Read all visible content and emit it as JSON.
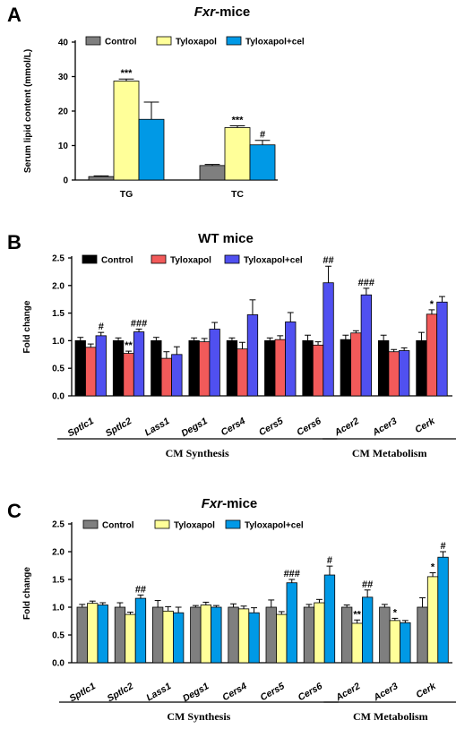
{
  "colors": {
    "control_gray": "#7f7f7f",
    "tyloxapol_yellow": "#ffff99",
    "cel_blue": "#0099e6",
    "control_black": "#000000",
    "tyloxapol_red": "#f25a5a",
    "cel_violet": "#5050f0"
  },
  "chart_data": [
    {
      "panel": "A",
      "title_italic": "Fxr",
      "title_rest": "-mice",
      "type": "bar",
      "ylabel": "Serum lipid content (mmol/L)",
      "ylim": [
        0,
        40
      ],
      "yticks": [
        "0",
        "10",
        "20",
        "30",
        "40"
      ],
      "legend": [
        "Control",
        "Tyloxapol",
        "Tyloxapol+cel"
      ],
      "categories": [
        "TG",
        "TC"
      ],
      "series": [
        {
          "name": "Control",
          "values": [
            1.0,
            4.2
          ],
          "errors": [
            0.2,
            0.3
          ],
          "color": "#7f7f7f"
        },
        {
          "name": "Tyloxapol",
          "values": [
            28.7,
            15.2
          ],
          "errors": [
            0.6,
            0.5
          ],
          "color": "#ffff99"
        },
        {
          "name": "Tyloxapol+cel",
          "values": [
            17.6,
            10.2
          ],
          "errors": [
            5.0,
            1.3
          ],
          "color": "#0099e6"
        }
      ],
      "annotations": [
        {
          "category": 0,
          "series": 1,
          "text": "***"
        },
        {
          "category": 1,
          "series": 1,
          "text": "***"
        },
        {
          "category": 1,
          "series": 2,
          "text": "#"
        }
      ],
      "groups": []
    },
    {
      "panel": "B",
      "title_italic": "",
      "title_rest": "WT mice",
      "type": "bar",
      "ylabel": "Fold change",
      "ylim": [
        0,
        2.5
      ],
      "yticks": [
        "0.0",
        "0.5",
        "1.0",
        "1.5",
        "2.0",
        "2.5"
      ],
      "legend": [
        "Control",
        "Tyloxapol",
        "Tyloxapol+cel"
      ],
      "categories": [
        "Sptlc1",
        "Sptlc2",
        "Lass1",
        "Degs1",
        "Cers4",
        "Cers5",
        "Cers6",
        "Acer2",
        "Acer3",
        "Cerk"
      ],
      "series": [
        {
          "name": "Control",
          "values": [
            1.0,
            1.0,
            1.0,
            1.0,
            1.0,
            1.0,
            1.0,
            1.02,
            1.0,
            1.0
          ],
          "errors": [
            0.06,
            0.05,
            0.06,
            0.05,
            0.05,
            0.05,
            0.1,
            0.08,
            0.1,
            0.15
          ],
          "color": "#000000"
        },
        {
          "name": "Tyloxapol",
          "values": [
            0.88,
            0.77,
            0.68,
            0.98,
            0.85,
            1.02,
            0.92,
            1.14,
            0.8,
            1.48
          ],
          "errors": [
            0.06,
            0.04,
            0.12,
            0.06,
            0.12,
            0.07,
            0.06,
            0.04,
            0.04,
            0.08
          ],
          "color": "#f25a5a"
        },
        {
          "name": "Tyloxapol+cel",
          "values": [
            1.09,
            1.16,
            0.75,
            1.21,
            1.47,
            1.34,
            2.05,
            1.83,
            0.82,
            1.7
          ],
          "errors": [
            0.06,
            0.05,
            0.14,
            0.12,
            0.27,
            0.17,
            0.3,
            0.12,
            0.05,
            0.1
          ],
          "color": "#5050f0"
        }
      ],
      "annotations": [
        {
          "category": 0,
          "series": 2,
          "text": "#"
        },
        {
          "category": 1,
          "series": 1,
          "text": "**"
        },
        {
          "category": 1,
          "series": 2,
          "text": "###"
        },
        {
          "category": 6,
          "series": 2,
          "text": "##"
        },
        {
          "category": 7,
          "series": 2,
          "text": "###"
        },
        {
          "category": 9,
          "series": 1,
          "text": "*"
        }
      ],
      "groups": [
        {
          "label": "CM Synthesis",
          "from": 0,
          "to": 6
        },
        {
          "label": "CM Metabolism",
          "from": 7,
          "to": 9
        }
      ]
    },
    {
      "panel": "C",
      "title_italic": "Fxr",
      "title_rest": "-mice",
      "type": "bar",
      "ylabel": "Fold change",
      "ylim": [
        0,
        2.5
      ],
      "yticks": [
        "0.0",
        "0.5",
        "1.0",
        "1.5",
        "2.0",
        "2.5"
      ],
      "legend": [
        "Control",
        "Tyloxapol",
        "Tyloxapol+cel"
      ],
      "categories": [
        "Sptlc1",
        "Sptlc2",
        "Lass1",
        "Degs1",
        "Cers4",
        "Cers5",
        "Cers6",
        "Acer2",
        "Acer3",
        "Cerk"
      ],
      "series": [
        {
          "name": "Control",
          "values": [
            1.0,
            1.0,
            1.0,
            1.0,
            1.0,
            1.0,
            1.0,
            1.0,
            1.0,
            1.0
          ],
          "errors": [
            0.05,
            0.08,
            0.12,
            0.03,
            0.06,
            0.13,
            0.05,
            0.04,
            0.05,
            0.17
          ],
          "color": "#7f7f7f"
        },
        {
          "name": "Tyloxapol",
          "values": [
            1.07,
            0.87,
            0.93,
            1.04,
            0.97,
            0.87,
            1.08,
            0.71,
            0.76,
            1.55
          ],
          "errors": [
            0.04,
            0.04,
            0.08,
            0.05,
            0.05,
            0.05,
            0.06,
            0.06,
            0.04,
            0.07
          ],
          "color": "#ffff99"
        },
        {
          "name": "Tyloxapol+cel",
          "values": [
            1.04,
            1.16,
            0.9,
            1.0,
            0.9,
            1.44,
            1.58,
            1.18,
            0.72,
            1.9
          ],
          "errors": [
            0.04,
            0.06,
            0.1,
            0.03,
            0.09,
            0.06,
            0.16,
            0.13,
            0.04,
            0.1
          ],
          "color": "#0099e6"
        }
      ],
      "annotations": [
        {
          "category": 1,
          "series": 2,
          "text": "##"
        },
        {
          "category": 5,
          "series": 2,
          "text": "###"
        },
        {
          "category": 6,
          "series": 2,
          "text": "#"
        },
        {
          "category": 7,
          "series": 1,
          "text": "**"
        },
        {
          "category": 7,
          "series": 2,
          "text": "##"
        },
        {
          "category": 8,
          "series": 1,
          "text": "*"
        },
        {
          "category": 9,
          "series": 1,
          "text": "*"
        },
        {
          "category": 9,
          "series": 2,
          "text": "#"
        }
      ],
      "groups": [
        {
          "label": "CM Synthesis",
          "from": 0,
          "to": 6
        },
        {
          "label": "CM Metabolism",
          "from": 7,
          "to": 9
        }
      ]
    }
  ]
}
